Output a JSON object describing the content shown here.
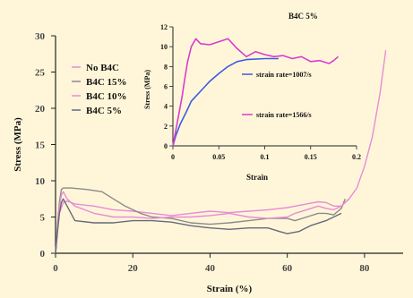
{
  "colors": {
    "background": "#fff6d9",
    "axis": "#222222",
    "tick_text": "#444444",
    "label_text": "#111111",
    "main_series": [
      "#e98bd5",
      "#8a8a8a",
      "#e98bd5",
      "#666a7a"
    ],
    "inset_series": [
      "#3b5cdc",
      "#d93cd0"
    ]
  },
  "chart_data": [
    {
      "type": "line",
      "xlabel": "Strain (%)",
      "ylabel": "Stress (MPa)",
      "xlim": [
        0,
        90
      ],
      "ylim": [
        0,
        30
      ],
      "xticks": [
        "0",
        "20",
        "40",
        "60",
        "80"
      ],
      "yticks": [
        "0",
        "5",
        "10",
        "15",
        "20",
        "25",
        "30"
      ],
      "legend_position": "top-left",
      "series": [
        {
          "name": "No B4C",
          "points": [
            [
              0,
              0
            ],
            [
              0.5,
              3
            ],
            [
              1,
              5.5
            ],
            [
              2,
              7
            ],
            [
              3,
              7.2
            ],
            [
              5,
              6.8
            ],
            [
              10,
              6.5
            ],
            [
              15,
              6
            ],
            [
              20,
              5.8
            ],
            [
              25,
              5.5
            ],
            [
              30,
              5.2
            ],
            [
              35,
              5.5
            ],
            [
              40,
              5.8
            ],
            [
              45,
              5.6
            ],
            [
              50,
              5.8
            ],
            [
              55,
              6
            ],
            [
              60,
              6.3
            ],
            [
              65,
              6.8
            ],
            [
              68,
              7.1
            ],
            [
              70,
              7
            ],
            [
              72,
              6.5
            ],
            [
              74,
              6.5
            ],
            [
              76,
              7.5
            ],
            [
              78,
              9
            ],
            [
              80,
              12
            ],
            [
              82,
              16
            ],
            [
              84,
              22
            ],
            [
              85.5,
              28
            ]
          ]
        },
        {
          "name": "B4C 15%",
          "points": [
            [
              0,
              0
            ],
            [
              0.5,
              4
            ],
            [
              1,
              7
            ],
            [
              1.5,
              8.8
            ],
            [
              2,
              9
            ],
            [
              4,
              9
            ],
            [
              8,
              8.8
            ],
            [
              12,
              8.5
            ],
            [
              15,
              7.5
            ],
            [
              18,
              6.5
            ],
            [
              22,
              5.5
            ],
            [
              25,
              5
            ],
            [
              30,
              4.8
            ],
            [
              35,
              4.2
            ],
            [
              40,
              4
            ],
            [
              45,
              4.2
            ],
            [
              50,
              4.5
            ],
            [
              55,
              4.8
            ],
            [
              60,
              4.8
            ],
            [
              62,
              4.5
            ],
            [
              65,
              5
            ],
            [
              68,
              5.5
            ],
            [
              70,
              5.5
            ],
            [
              72,
              5.3
            ],
            [
              74,
              6.2
            ],
            [
              75,
              7.5
            ]
          ]
        },
        {
          "name": "B4C 10%",
          "points": [
            [
              0,
              0
            ],
            [
              0.5,
              3.5
            ],
            [
              1,
              6.5
            ],
            [
              1.5,
              8
            ],
            [
              2,
              8.5
            ],
            [
              3,
              7.5
            ],
            [
              5,
              6.5
            ],
            [
              10,
              5.5
            ],
            [
              15,
              5
            ],
            [
              20,
              5
            ],
            [
              25,
              4.8
            ],
            [
              30,
              5
            ],
            [
              35,
              5
            ],
            [
              40,
              5.2
            ],
            [
              45,
              5.5
            ],
            [
              50,
              5
            ],
            [
              55,
              4.8
            ],
            [
              60,
              5
            ],
            [
              62,
              5.5
            ],
            [
              65,
              6
            ],
            [
              68,
              6.5
            ],
            [
              70,
              6.2
            ],
            [
              72,
              6
            ],
            [
              74,
              6.5
            ],
            [
              76,
              7.5
            ]
          ]
        },
        {
          "name": "B4C 5%",
          "points": [
            [
              0,
              0
            ],
            [
              0.5,
              3
            ],
            [
              1,
              5.5
            ],
            [
              1.5,
              7
            ],
            [
              2,
              7.5
            ],
            [
              3,
              6.5
            ],
            [
              5,
              4.5
            ],
            [
              10,
              4.2
            ],
            [
              15,
              4.2
            ],
            [
              20,
              4.5
            ],
            [
              25,
              4.5
            ],
            [
              30,
              4.3
            ],
            [
              35,
              3.8
            ],
            [
              40,
              3.5
            ],
            [
              45,
              3.3
            ],
            [
              50,
              3.5
            ],
            [
              55,
              3.5
            ],
            [
              58,
              3
            ],
            [
              60,
              2.7
            ],
            [
              63,
              3
            ],
            [
              66,
              3.8
            ],
            [
              70,
              4.5
            ],
            [
              72,
              5
            ],
            [
              74,
              5.5
            ]
          ]
        }
      ]
    },
    {
      "type": "line",
      "title": "B4C 5%",
      "xlabel": "Strain",
      "ylabel": "Stress (MPa)",
      "xlim": [
        0,
        0.2
      ],
      "ylim": [
        0,
        12
      ],
      "xticks": [
        "0",
        "0.05",
        "0.1",
        "0.15",
        "0.2"
      ],
      "yticks": [
        "0",
        "2",
        "4",
        "6",
        "8",
        "10",
        "12"
      ],
      "series": [
        {
          "name": "strain rate=1007/s",
          "points": [
            [
              0,
              0
            ],
            [
              0.003,
              1
            ],
            [
              0.008,
              2.2
            ],
            [
              0.015,
              3.5
            ],
            [
              0.02,
              4.5
            ],
            [
              0.03,
              5.5
            ],
            [
              0.04,
              6.5
            ],
            [
              0.05,
              7.3
            ],
            [
              0.06,
              8
            ],
            [
              0.07,
              8.5
            ],
            [
              0.08,
              8.7
            ],
            [
              0.1,
              8.8
            ],
            [
              0.115,
              8.8
            ]
          ]
        },
        {
          "name": "strain rate=1566/s",
          "points": [
            [
              0,
              0
            ],
            [
              0.003,
              1.5
            ],
            [
              0.006,
              3
            ],
            [
              0.01,
              5
            ],
            [
              0.013,
              6.8
            ],
            [
              0.016,
              8.5
            ],
            [
              0.02,
              10
            ],
            [
              0.025,
              10.8
            ],
            [
              0.03,
              10.3
            ],
            [
              0.04,
              10.2
            ],
            [
              0.05,
              10.5
            ],
            [
              0.06,
              10.8
            ],
            [
              0.07,
              9.8
            ],
            [
              0.08,
              9
            ],
            [
              0.09,
              9.5
            ],
            [
              0.1,
              9.2
            ],
            [
              0.11,
              9
            ],
            [
              0.12,
              9.1
            ],
            [
              0.13,
              8.8
            ],
            [
              0.14,
              9
            ],
            [
              0.15,
              8.5
            ],
            [
              0.16,
              8.6
            ],
            [
              0.17,
              8.3
            ],
            [
              0.175,
              8.6
            ],
            [
              0.18,
              9
            ]
          ]
        }
      ]
    }
  ]
}
